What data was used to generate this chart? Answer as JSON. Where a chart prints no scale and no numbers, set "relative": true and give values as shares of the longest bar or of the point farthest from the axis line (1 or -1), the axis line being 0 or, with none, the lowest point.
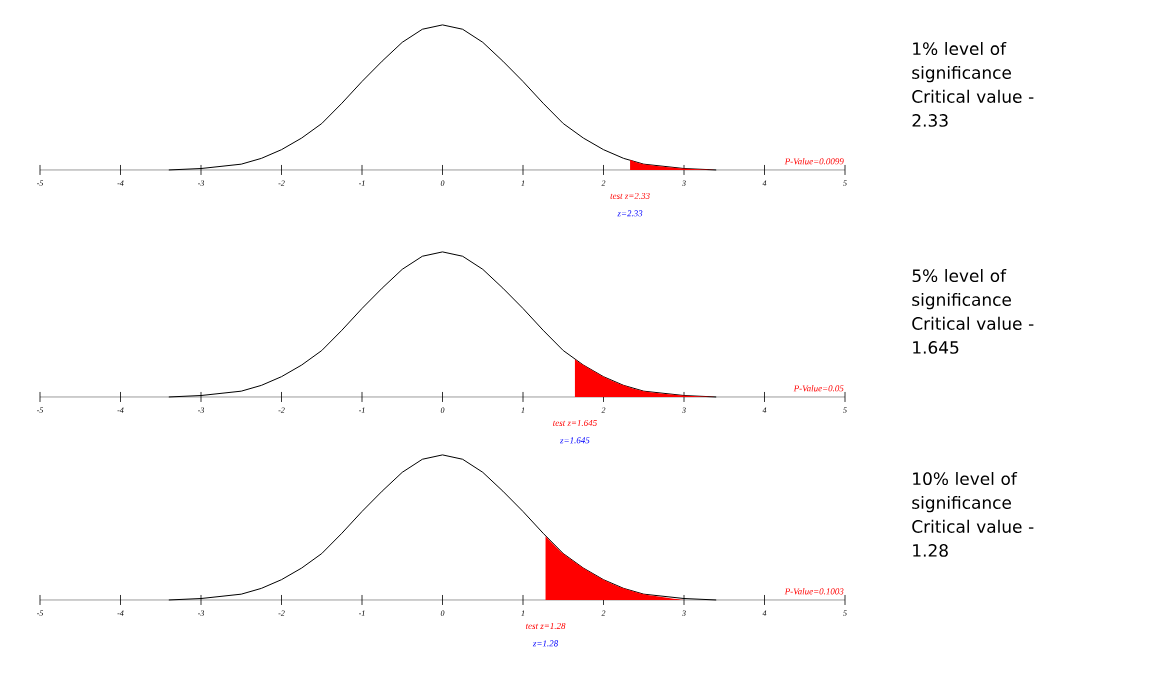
{
  "chart_data": [
    {
      "type": "line",
      "relative": true,
      "xlim": [
        -5,
        5
      ],
      "xticks": [
        -5,
        -4,
        -3,
        -2,
        -1,
        0,
        1,
        2,
        3,
        4,
        5
      ],
      "series": [
        {
          "color": "#000000",
          "x": [
            -3.4,
            -3,
            -2.5,
            -2.25,
            -2,
            -1.75,
            -1.5,
            -1.25,
            -1,
            -0.75,
            -0.5,
            -0.25,
            0,
            0.25,
            0.5,
            0.75,
            1,
            1.25,
            1.5,
            1.75,
            2,
            2.25,
            2.5,
            3,
            3.4
          ],
          "values": [
            0.0,
            0.01,
            0.04,
            0.08,
            0.14,
            0.22,
            0.32,
            0.46,
            0.61,
            0.75,
            0.88,
            0.97,
            1,
            0.97,
            0.88,
            0.75,
            0.61,
            0.46,
            0.32,
            0.22,
            0.14,
            0.08,
            0.04,
            0.01,
            0.0
          ]
        },
        {
          "type": "area",
          "color": "#ff0000",
          "x": [
            2.33,
            2.5,
            3,
            3.4
          ],
          "values": [
            0.07,
            0.04,
            0.01,
            0.0
          ]
        }
      ],
      "annotations": [
        "P-Value=0.0099",
        "test z=2.33",
        "z=2.33",
        "1% level of significance Critical value - 2.33"
      ]
    },
    {
      "type": "line",
      "relative": true,
      "xlim": [
        -5,
        5
      ],
      "xticks": [
        -5,
        -4,
        -3,
        -2,
        -1,
        0,
        1,
        2,
        3,
        4,
        5
      ],
      "series": [
        {
          "color": "#000000",
          "x": [
            -3.4,
            -3,
            -2.5,
            -2.25,
            -2,
            -1.75,
            -1.5,
            -1.25,
            -1,
            -0.75,
            -0.5,
            -0.25,
            0,
            0.25,
            0.5,
            0.75,
            1,
            1.25,
            1.5,
            1.75,
            2,
            2.25,
            2.5,
            3,
            3.4
          ],
          "values": [
            0.0,
            0.01,
            0.04,
            0.08,
            0.14,
            0.22,
            0.32,
            0.46,
            0.61,
            0.75,
            0.88,
            0.97,
            1,
            0.97,
            0.88,
            0.75,
            0.61,
            0.46,
            0.32,
            0.22,
            0.14,
            0.08,
            0.04,
            0.01,
            0.0
          ]
        },
        {
          "type": "area",
          "color": "#ff0000",
          "x": [
            1.645,
            1.75,
            2,
            2.25,
            2.5,
            3,
            3.4
          ],
          "values": [
            0.26,
            0.22,
            0.14,
            0.08,
            0.04,
            0.01,
            0.0
          ]
        }
      ],
      "annotations": [
        "P-Value=0.05",
        "test z=1.645",
        "z=1.645",
        "5% level of significance Critical value - 1.645"
      ]
    },
    {
      "type": "line",
      "relative": true,
      "xlim": [
        -5,
        5
      ],
      "xticks": [
        -5,
        -4,
        -3,
        -2,
        -1,
        0,
        1,
        2,
        3,
        4,
        5
      ],
      "series": [
        {
          "color": "#000000",
          "x": [
            -3.4,
            -3,
            -2.5,
            -2.25,
            -2,
            -1.75,
            -1.5,
            -1.25,
            -1,
            -0.75,
            -0.5,
            -0.25,
            0,
            0.25,
            0.5,
            0.75,
            1,
            1.25,
            1.5,
            1.75,
            2,
            2.25,
            2.5,
            3,
            3.4
          ],
          "values": [
            0.0,
            0.01,
            0.04,
            0.08,
            0.14,
            0.22,
            0.32,
            0.46,
            0.61,
            0.75,
            0.88,
            0.97,
            1,
            0.97,
            0.88,
            0.75,
            0.61,
            0.46,
            0.32,
            0.22,
            0.14,
            0.08,
            0.04,
            0.01,
            0.0
          ]
        },
        {
          "type": "area",
          "color": "#ff0000",
          "x": [
            1.28,
            1.5,
            1.75,
            2,
            2.25,
            2.5,
            3
          ],
          "values": [
            0.44,
            0.32,
            0.22,
            0.14,
            0.08,
            0.04,
            0.0
          ]
        }
      ],
      "annotations": [
        "P-Value=0.1003",
        "test z=1.28",
        "z=1.28",
        "10% level of significance Critical value - 1.28"
      ]
    }
  ]
}
